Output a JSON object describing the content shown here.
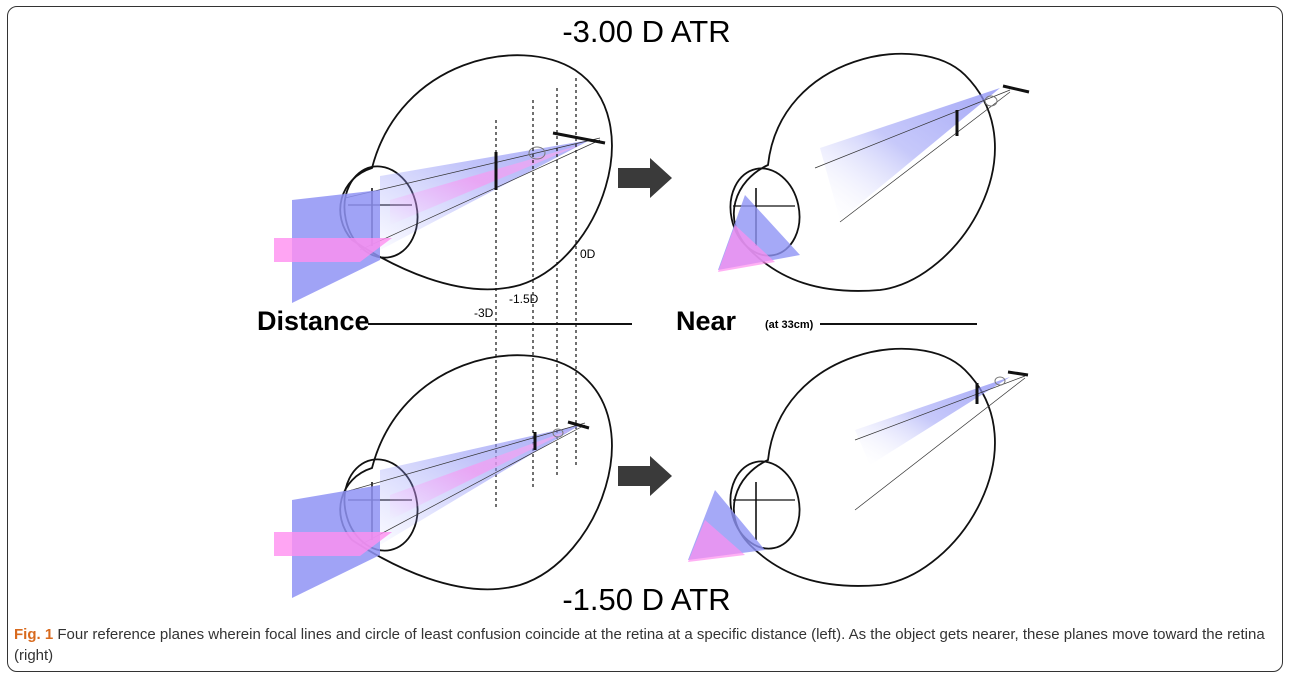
{
  "figure": {
    "top_title": "-3.00 D ATR",
    "bottom_title": "-1.50 D ATR",
    "label_distance": "Distance",
    "label_near": "Near",
    "label_near_sub": "(at 33cm)",
    "plane_labels": [
      "-3D",
      "-1.5D",
      "0D"
    ]
  },
  "caption": {
    "label": "Fig. 1",
    "text": "Four reference planes wherein focal lines and circle of least confusion coincide at the retina at a specific distance (left). As the object gets nearer, these planes move toward the retina (right)"
  }
}
